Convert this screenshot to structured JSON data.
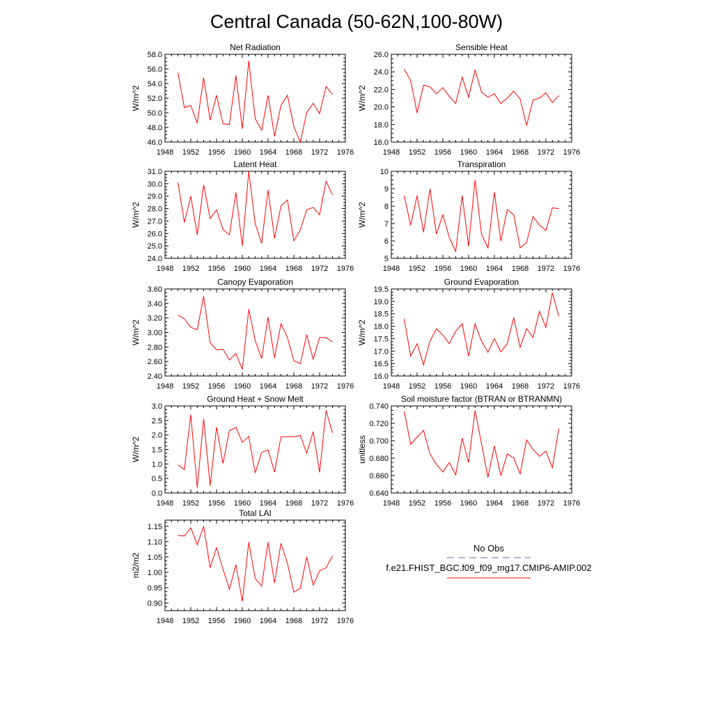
{
  "figure": {
    "title": "Central Canada (50-62N,100-80W)",
    "series_color": "#ff0000",
    "obs_color": "#6666aa"
  },
  "legend": {
    "obs_label": "No Obs",
    "model_label": "f.e21.FHIST_BGC.f09_f09_mg17.CMIP6-AMIP.002"
  },
  "chart_data": [
    {
      "type": "line",
      "title": "Net Radiation",
      "ylabel": "W/m^2",
      "xlim": [
        1948,
        1976
      ],
      "xticks": [
        1948,
        1952,
        1956,
        1960,
        1964,
        1968,
        1972,
        1976
      ],
      "ylim": [
        46,
        58
      ],
      "yticks": [
        "46.0",
        "48.0",
        "50.0",
        "52.0",
        "54.0",
        "56.0",
        "58.0"
      ],
      "x": [
        1950,
        1951,
        1952,
        1953,
        1954,
        1955,
        1956,
        1957,
        1958,
        1959,
        1960,
        1961,
        1962,
        1963,
        1964,
        1965,
        1966,
        1967,
        1968,
        1969,
        1970,
        1971,
        1972,
        1973,
        1974
      ],
      "values": [
        55.5,
        50.7,
        51.0,
        48.6,
        54.8,
        49.0,
        52.4,
        48.5,
        48.4,
        55.1,
        47.8,
        57.1,
        49.2,
        47.6,
        52.4,
        46.8,
        51.0,
        52.4,
        48.1,
        46.0,
        50.0,
        51.3,
        49.9,
        53.6,
        52.5
      ]
    },
    {
      "type": "line",
      "title": "Sensible Heat",
      "ylabel": "W/m^2",
      "xlim": [
        1948,
        1976
      ],
      "xticks": [
        1948,
        1952,
        1956,
        1960,
        1964,
        1968,
        1972,
        1976
      ],
      "ylim": [
        16,
        26
      ],
      "yticks": [
        "16.0",
        "18.0",
        "20.0",
        "22.0",
        "24.0",
        "26.0"
      ],
      "x": [
        1950,
        1951,
        1952,
        1953,
        1954,
        1955,
        1956,
        1957,
        1958,
        1959,
        1960,
        1961,
        1962,
        1963,
        1964,
        1965,
        1966,
        1967,
        1968,
        1969,
        1970,
        1971,
        1972,
        1973,
        1974
      ],
      "values": [
        24.3,
        23.0,
        19.3,
        22.5,
        22.3,
        21.5,
        22.2,
        21.2,
        20.4,
        23.4,
        21.1,
        24.2,
        21.7,
        21.1,
        21.5,
        20.4,
        21.0,
        21.8,
        20.9,
        17.9,
        20.8,
        21.0,
        21.6,
        20.5,
        21.3
      ]
    },
    {
      "type": "line",
      "title": "Latent Heat",
      "ylabel": "W/m^2",
      "xlim": [
        1948,
        1976
      ],
      "xticks": [
        1948,
        1952,
        1956,
        1960,
        1964,
        1968,
        1972,
        1976
      ],
      "ylim": [
        24,
        31
      ],
      "yticks": [
        "24.0",
        "25.0",
        "26.0",
        "27.0",
        "28.0",
        "29.0",
        "30.0",
        "31.0"
      ],
      "x": [
        1950,
        1951,
        1952,
        1953,
        1954,
        1955,
        1956,
        1957,
        1958,
        1959,
        1960,
        1961,
        1962,
        1963,
        1964,
        1965,
        1966,
        1967,
        1968,
        1969,
        1970,
        1971,
        1972,
        1973,
        1974
      ],
      "values": [
        30.1,
        26.9,
        29.0,
        25.9,
        29.9,
        27.2,
        27.9,
        26.3,
        25.9,
        29.3,
        25.0,
        31.0,
        26.8,
        25.2,
        29.5,
        25.6,
        28.2,
        28.7,
        25.4,
        26.3,
        27.9,
        28.1,
        27.5,
        30.2,
        29.1
      ]
    },
    {
      "type": "line",
      "title": "Transpiration",
      "ylabel": "W/m^2",
      "xlim": [
        1948,
        1976
      ],
      "xticks": [
        1948,
        1952,
        1956,
        1960,
        1964,
        1968,
        1972,
        1976
      ],
      "ylim": [
        5,
        10
      ],
      "yticks": [
        "5",
        "6",
        "7",
        "8",
        "9",
        "10"
      ],
      "x": [
        1950,
        1951,
        1952,
        1953,
        1954,
        1955,
        1956,
        1957,
        1958,
        1959,
        1960,
        1961,
        1962,
        1963,
        1964,
        1965,
        1966,
        1967,
        1968,
        1969,
        1970,
        1971,
        1972,
        1973,
        1974
      ],
      "values": [
        8.6,
        6.9,
        8.6,
        6.5,
        9.0,
        6.4,
        7.5,
        6.2,
        5.4,
        8.6,
        5.7,
        9.5,
        6.4,
        5.6,
        8.8,
        6.0,
        7.8,
        7.5,
        5.6,
        5.9,
        7.4,
        6.9,
        6.6,
        7.9,
        7.85
      ]
    },
    {
      "type": "line",
      "title": "Canopy Evaporation",
      "ylabel": "W/m^2",
      "xlim": [
        1948,
        1976
      ],
      "xticks": [
        1948,
        1952,
        1956,
        1960,
        1964,
        1968,
        1972,
        1976
      ],
      "ylim": [
        2.4,
        3.6
      ],
      "yticks": [
        "2.40",
        "2.60",
        "2.80",
        "3.00",
        "3.20",
        "3.40",
        "3.60"
      ],
      "x": [
        1950,
        1951,
        1952,
        1953,
        1954,
        1955,
        1956,
        1957,
        1958,
        1959,
        1960,
        1961,
        1962,
        1963,
        1964,
        1965,
        1966,
        1967,
        1968,
        1969,
        1970,
        1971,
        1972,
        1973,
        1974
      ],
      "values": [
        3.24,
        3.19,
        3.07,
        3.04,
        3.5,
        2.86,
        2.76,
        2.77,
        2.62,
        2.71,
        2.49,
        3.32,
        2.89,
        2.64,
        3.21,
        2.65,
        3.12,
        2.93,
        2.61,
        2.57,
        2.97,
        2.63,
        2.93,
        2.93,
        2.87
      ]
    },
    {
      "type": "line",
      "title": "Ground Evaporation",
      "ylabel": "W/m^2",
      "xlim": [
        1948,
        1976
      ],
      "xticks": [
        1948,
        1952,
        1956,
        1960,
        1964,
        1968,
        1972,
        1976
      ],
      "ylim": [
        16,
        19.5
      ],
      "yticks": [
        "16.0",
        "16.5",
        "17.0",
        "17.5",
        "18.0",
        "18.5",
        "19.0",
        "19.5"
      ],
      "x": [
        1950,
        1951,
        1952,
        1953,
        1954,
        1955,
        1956,
        1957,
        1958,
        1959,
        1960,
        1961,
        1962,
        1963,
        1964,
        1965,
        1966,
        1967,
        1968,
        1969,
        1970,
        1971,
        1972,
        1973,
        1974
      ],
      "values": [
        18.3,
        16.8,
        17.3,
        16.45,
        17.4,
        17.9,
        17.65,
        17.3,
        17.8,
        18.1,
        16.8,
        18.1,
        17.4,
        16.95,
        17.5,
        16.97,
        17.3,
        18.35,
        17.15,
        17.9,
        17.55,
        18.6,
        17.95,
        19.35,
        18.4
      ]
    },
    {
      "type": "line",
      "title": "Ground Heat + Snow Melt",
      "ylabel": "W/m^2",
      "xlim": [
        1948,
        1976
      ],
      "xticks": [
        1948,
        1952,
        1956,
        1960,
        1964,
        1968,
        1972,
        1976
      ],
      "ylim": [
        0,
        3
      ],
      "yticks": [
        "0.0",
        "0.5",
        "1.0",
        "1.5",
        "2.0",
        "2.5",
        "3.0"
      ],
      "x": [
        1950,
        1951,
        1952,
        1953,
        1954,
        1955,
        1956,
        1957,
        1958,
        1959,
        1960,
        1961,
        1962,
        1963,
        1964,
        1965,
        1966,
        1967,
        1968,
        1969,
        1970,
        1971,
        1972,
        1973,
        1974
      ],
      "values": [
        0.97,
        0.81,
        2.7,
        0.18,
        2.55,
        0.25,
        2.27,
        1.02,
        2.15,
        2.26,
        1.75,
        1.95,
        0.69,
        1.4,
        1.48,
        0.72,
        1.94,
        1.94,
        1.94,
        1.98,
        1.37,
        2.12,
        0.71,
        2.84,
        2.07
      ]
    },
    {
      "type": "line",
      "title": "Soil moisture factor (BTRAN or BTRANMN)",
      "ylabel": "unitless",
      "xlim": [
        1948,
        1976
      ],
      "xticks": [
        1948,
        1952,
        1956,
        1960,
        1964,
        1968,
        1972,
        1976
      ],
      "ylim": [
        0.64,
        0.74
      ],
      "yticks": [
        "0.640",
        "0.660",
        "0.680",
        "0.700",
        "0.720",
        "0.740"
      ],
      "x": [
        1950,
        1951,
        1952,
        1953,
        1954,
        1955,
        1956,
        1957,
        1958,
        1959,
        1960,
        1961,
        1962,
        1963,
        1964,
        1965,
        1966,
        1967,
        1968,
        1969,
        1970,
        1971,
        1972,
        1973,
        1974
      ],
      "values": [
        0.734,
        0.696,
        0.704,
        0.712,
        0.685,
        0.673,
        0.664,
        0.675,
        0.661,
        0.703,
        0.675,
        0.735,
        0.697,
        0.658,
        0.694,
        0.66,
        0.685,
        0.68,
        0.662,
        0.701,
        0.69,
        0.682,
        0.688,
        0.669,
        0.714
      ]
    },
    {
      "type": "line",
      "title": "Total LAI",
      "ylabel": "m2/m2",
      "xlim": [
        1948,
        1976
      ],
      "xticks": [
        1948,
        1952,
        1956,
        1960,
        1964,
        1968,
        1972,
        1976
      ],
      "ylim": [
        0.875,
        1.17
      ],
      "yticks": [
        "0.90",
        "0.95",
        "1.00",
        "1.05",
        "1.10",
        "1.15"
      ],
      "x": [
        1950,
        1951,
        1952,
        1953,
        1954,
        1955,
        1956,
        1957,
        1958,
        1959,
        1960,
        1961,
        1962,
        1963,
        1964,
        1965,
        1966,
        1967,
        1968,
        1969,
        1970,
        1971,
        1972,
        1973,
        1974
      ],
      "values": [
        1.12,
        1.118,
        1.145,
        1.09,
        1.15,
        1.015,
        1.08,
        1.01,
        0.945,
        1.025,
        0.905,
        1.098,
        0.98,
        0.955,
        1.098,
        0.965,
        1.095,
        1.03,
        0.935,
        0.948,
        1.05,
        0.958,
        1.005,
        1.015,
        1.053
      ]
    }
  ]
}
